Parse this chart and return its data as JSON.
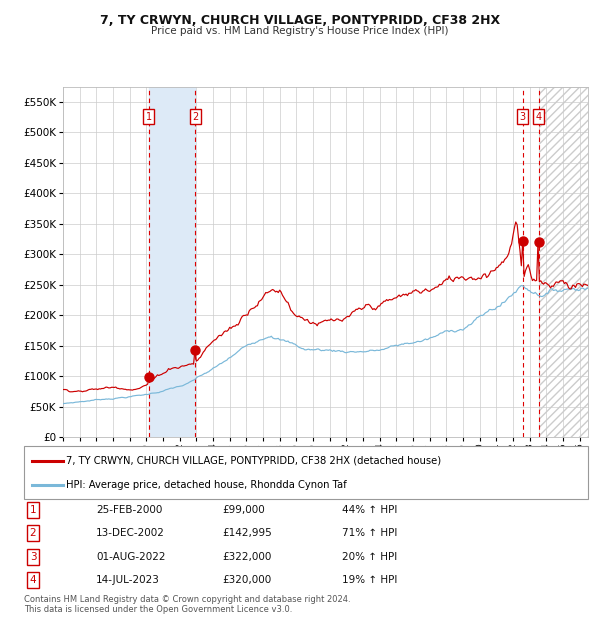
{
  "title": "7, TY CRWYN, CHURCH VILLAGE, PONTYPRIDD, CF38 2HX",
  "subtitle": "Price paid vs. HM Land Registry's House Price Index (HPI)",
  "ylim": [
    0,
    575000
  ],
  "yticks": [
    0,
    50000,
    100000,
    150000,
    200000,
    250000,
    300000,
    350000,
    400000,
    450000,
    500000,
    550000
  ],
  "ytick_labels": [
    "£0",
    "£50K",
    "£100K",
    "£150K",
    "£200K",
    "£250K",
    "£300K",
    "£350K",
    "£400K",
    "£450K",
    "£500K",
    "£550K"
  ],
  "hpi_line_color": "#7ab8d9",
  "price_line_color": "#cc0000",
  "dot_color": "#cc0000",
  "background_color": "#ffffff",
  "plot_bg_color": "#ffffff",
  "grid_color": "#cccccc",
  "shade_color_12": "#ddeaf7",
  "transactions": [
    {
      "id": 1,
      "date_num": 2000.14,
      "price": 99000,
      "label": "25-FEB-2000",
      "pct": "44%"
    },
    {
      "id": 2,
      "date_num": 2002.95,
      "price": 142995,
      "label": "13-DEC-2002",
      "pct": "71%"
    },
    {
      "id": 3,
      "date_num": 2022.58,
      "price": 322000,
      "label": "01-AUG-2022",
      "pct": "20%"
    },
    {
      "id": 4,
      "date_num": 2023.54,
      "price": 320000,
      "label": "14-JUL-2023",
      "pct": "19%"
    }
  ],
  "legend_label_price": "7, TY CRWYN, CHURCH VILLAGE, PONTYPRIDD, CF38 2HX (detached house)",
  "legend_label_hpi": "HPI: Average price, detached house, Rhondda Cynon Taf",
  "footer1": "Contains HM Land Registry data © Crown copyright and database right 2024.",
  "footer2": "This data is licensed under the Open Government Licence v3.0.",
  "xmin": 1995.0,
  "xmax": 2026.5,
  "table_rows": [
    [
      "1",
      "25-FEB-2000",
      "£99,000",
      "44% ↑ HPI"
    ],
    [
      "2",
      "13-DEC-2002",
      "£142,995",
      "71% ↑ HPI"
    ],
    [
      "3",
      "01-AUG-2022",
      "£322,000",
      "20% ↑ HPI"
    ],
    [
      "4",
      "14-JUL-2023",
      "£320,000",
      "19% ↑ HPI"
    ]
  ]
}
